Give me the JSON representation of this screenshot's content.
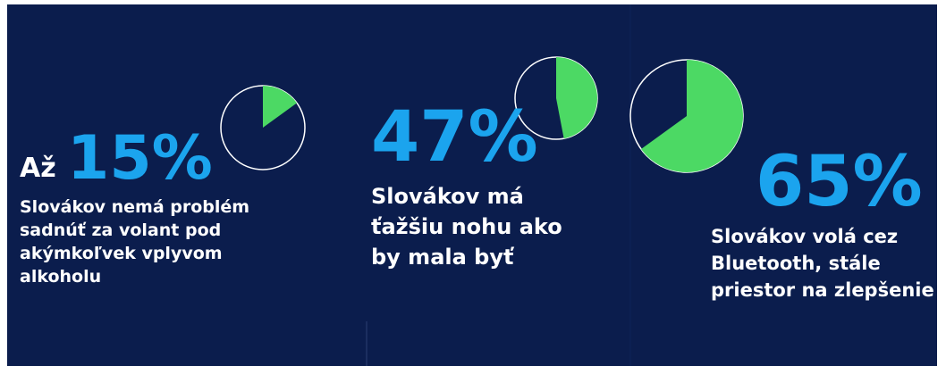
{
  "chart_data": [
    {
      "type": "pie",
      "prefix": "Až",
      "values": [
        15
      ],
      "value_labels": [
        "15%"
      ],
      "color": "#4cd964",
      "lines": [
        "Slovákov nemá problém",
        "sadnúť za volant pod",
        "akýmkoľvek vplyvom",
        "alkoholu"
      ]
    },
    {
      "type": "pie",
      "values": [
        47
      ],
      "value_labels": [
        "47%"
      ],
      "color": "#4cd964",
      "lines": [
        "Slovákov má",
        "ťažšiu nohu ako",
        "by mala byť"
      ]
    },
    {
      "type": "pie",
      "values": [
        65
      ],
      "value_labels": [
        "65%"
      ],
      "color": "#4cd964",
      "lines": [
        "Slovákov volá cez",
        "Bluetooth, stále",
        "priestor na zlepšenie"
      ]
    }
  ]
}
